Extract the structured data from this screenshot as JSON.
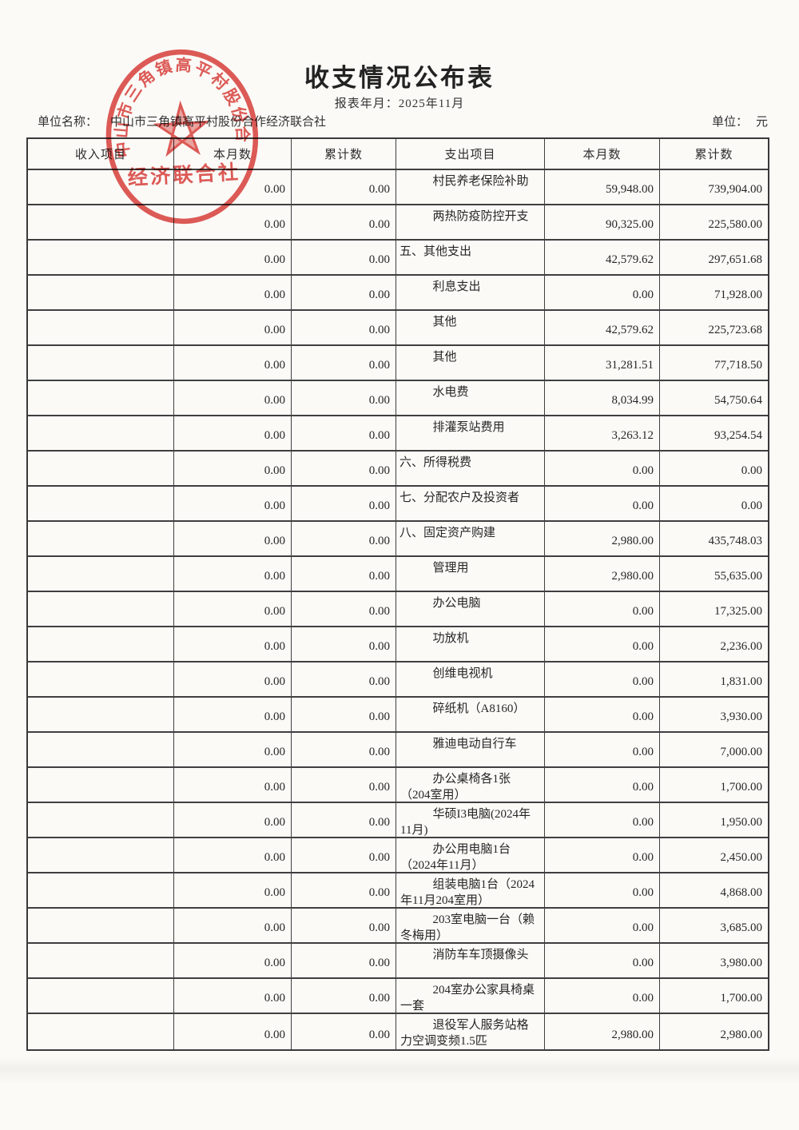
{
  "page": {
    "title": "收支情况公布表",
    "report_period_label": "报表年月：",
    "report_period": "2025年11月",
    "unit_name_label": "单位名称：",
    "unit_name": "中山市三角镇高平村股份合作经济联合社",
    "currency_label": "单位：",
    "currency": "元"
  },
  "stamp": {
    "arc_text": "中山市三角镇高平村股份合作经",
    "bottom_text": "经济联合社",
    "color": "#d8332f"
  },
  "table": {
    "headers": [
      "收入项目",
      "本月数",
      "累计数",
      "支出项目",
      "本月数",
      "累计数"
    ],
    "rows": [
      {
        "income_item": "",
        "income_month": "0.00",
        "income_total": "0.00",
        "expense_item": "村民养老保险补助",
        "expense_month": "59,948.00",
        "expense_total": "739,904.00",
        "category": false
      },
      {
        "income_item": "",
        "income_month": "0.00",
        "income_total": "0.00",
        "expense_item": "两热防疫防控开支",
        "expense_month": "90,325.00",
        "expense_total": "225,580.00",
        "category": false
      },
      {
        "income_item": "",
        "income_month": "0.00",
        "income_total": "0.00",
        "expense_item": "五、其他支出",
        "expense_month": "42,579.62",
        "expense_total": "297,651.68",
        "category": true
      },
      {
        "income_item": "",
        "income_month": "0.00",
        "income_total": "0.00",
        "expense_item": "利息支出",
        "expense_month": "0.00",
        "expense_total": "71,928.00",
        "category": false
      },
      {
        "income_item": "",
        "income_month": "0.00",
        "income_total": "0.00",
        "expense_item": "其他",
        "expense_month": "42,579.62",
        "expense_total": "225,723.68",
        "category": false
      },
      {
        "income_item": "",
        "income_month": "0.00",
        "income_total": "0.00",
        "expense_item": "其他",
        "expense_month": "31,281.51",
        "expense_total": "77,718.50",
        "category": false
      },
      {
        "income_item": "",
        "income_month": "0.00",
        "income_total": "0.00",
        "expense_item": "水电费",
        "expense_month": "8,034.99",
        "expense_total": "54,750.64",
        "category": false
      },
      {
        "income_item": "",
        "income_month": "0.00",
        "income_total": "0.00",
        "expense_item": "排灌泵站费用",
        "expense_month": "3,263.12",
        "expense_total": "93,254.54",
        "category": false
      },
      {
        "income_item": "",
        "income_month": "0.00",
        "income_total": "0.00",
        "expense_item": "六、所得税费",
        "expense_month": "0.00",
        "expense_total": "0.00",
        "category": true
      },
      {
        "income_item": "",
        "income_month": "0.00",
        "income_total": "0.00",
        "expense_item": "七、分配农户及投资者",
        "expense_month": "0.00",
        "expense_total": "0.00",
        "category": true
      },
      {
        "income_item": "",
        "income_month": "0.00",
        "income_total": "0.00",
        "expense_item": "八、固定资产购建",
        "expense_month": "2,980.00",
        "expense_total": "435,748.03",
        "category": true
      },
      {
        "income_item": "",
        "income_month": "0.00",
        "income_total": "0.00",
        "expense_item": "管理用",
        "expense_month": "2,980.00",
        "expense_total": "55,635.00",
        "category": false
      },
      {
        "income_item": "",
        "income_month": "0.00",
        "income_total": "0.00",
        "expense_item": "办公电脑",
        "expense_month": "0.00",
        "expense_total": "17,325.00",
        "category": false
      },
      {
        "income_item": "",
        "income_month": "0.00",
        "income_total": "0.00",
        "expense_item": "功放机",
        "expense_month": "0.00",
        "expense_total": "2,236.00",
        "category": false
      },
      {
        "income_item": "",
        "income_month": "0.00",
        "income_total": "0.00",
        "expense_item": "创维电视机",
        "expense_month": "0.00",
        "expense_total": "1,831.00",
        "category": false
      },
      {
        "income_item": "",
        "income_month": "0.00",
        "income_total": "0.00",
        "expense_item": "碎纸机（A8160）",
        "expense_month": "0.00",
        "expense_total": "3,930.00",
        "category": false
      },
      {
        "income_item": "",
        "income_month": "0.00",
        "income_total": "0.00",
        "expense_item": "雅迪电动自行车",
        "expense_month": "0.00",
        "expense_total": "7,000.00",
        "category": false
      },
      {
        "income_item": "",
        "income_month": "0.00",
        "income_total": "0.00",
        "expense_item": "办公桌椅各1张（204室用）",
        "expense_month": "0.00",
        "expense_total": "1,700.00",
        "category": false
      },
      {
        "income_item": "",
        "income_month": "0.00",
        "income_total": "0.00",
        "expense_item": "华硕I3电脑(2024年11月)",
        "expense_month": "0.00",
        "expense_total": "1,950.00",
        "category": false
      },
      {
        "income_item": "",
        "income_month": "0.00",
        "income_total": "0.00",
        "expense_item": "办公用电脑1台（2024年11月）",
        "expense_month": "0.00",
        "expense_total": "2,450.00",
        "category": false
      },
      {
        "income_item": "",
        "income_month": "0.00",
        "income_total": "0.00",
        "expense_item": "组装电脑1台（2024年11月204室用）",
        "expense_month": "0.00",
        "expense_total": "4,868.00",
        "category": false
      },
      {
        "income_item": "",
        "income_month": "0.00",
        "income_total": "0.00",
        "expense_item": "203室电脑一台（赖冬梅用）",
        "expense_month": "0.00",
        "expense_total": "3,685.00",
        "category": false
      },
      {
        "income_item": "",
        "income_month": "0.00",
        "income_total": "0.00",
        "expense_item": "消防车车顶摄像头",
        "expense_month": "0.00",
        "expense_total": "3,980.00",
        "category": false
      },
      {
        "income_item": "",
        "income_month": "0.00",
        "income_total": "0.00",
        "expense_item": "204室办公家具椅桌一套",
        "expense_month": "0.00",
        "expense_total": "1,700.00",
        "category": false
      },
      {
        "income_item": "",
        "income_month": "0.00",
        "income_total": "0.00",
        "expense_item": "退役军人服务站格力空调变频1.5匹",
        "expense_month": "2,980.00",
        "expense_total": "2,980.00",
        "category": false
      }
    ]
  }
}
